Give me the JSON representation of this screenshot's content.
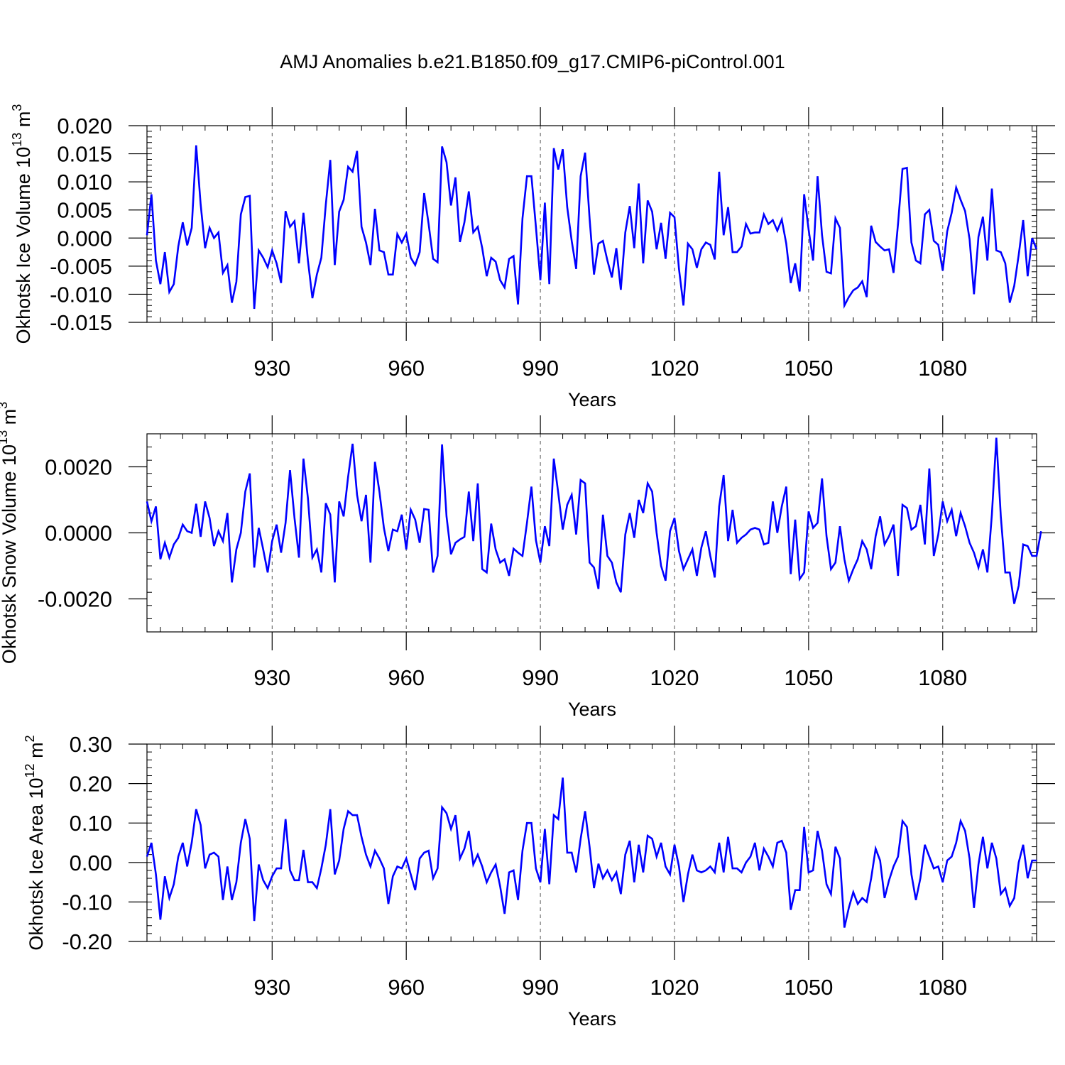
{
  "figure": {
    "title": "AMJ Anomalies b.e21.B1850.f09_g17.CMIP6-piControl.001"
  },
  "colors": {
    "line": "#0000ff",
    "axis": "#000000",
    "grid": "#555555"
  },
  "chart_data": [
    {
      "type": "line",
      "ylabel": "Okhotsk Ice Volume",
      "yunit_base": "10",
      "yunit_exp": "13",
      "yunit_sym": "m",
      "yunit_sym_exp": "3",
      "xlabel": "Years",
      "xlim": [
        902,
        1101
      ],
      "ylim": [
        -0.015,
        0.02
      ],
      "x_ticks": [
        930,
        960,
        990,
        1020,
        1050,
        1080
      ],
      "x_tick_labels": [
        "930",
        "960",
        "990",
        "1020",
        "1050",
        "1080"
      ],
      "y_ticks": [
        -0.015,
        -0.01,
        -0.005,
        0.0,
        0.005,
        0.01,
        0.015,
        0.02
      ],
      "y_tick_labels": [
        "-0.015",
        "-0.010",
        "-0.005",
        "0.000",
        "0.005",
        "0.010",
        "0.015",
        "0.020"
      ],
      "grid": "vertical-dashed",
      "x_start": 902,
      "values": [
        0.0005,
        0.0078,
        -0.004,
        -0.0082,
        -0.0025,
        -0.0096,
        -0.0082,
        -0.0015,
        0.0028,
        -0.0013,
        0.0018,
        0.0165,
        0.006,
        -0.0018,
        0.0018,
        0.0,
        0.001,
        -0.0062,
        -0.0048,
        -0.0115,
        -0.0078,
        0.0042,
        0.0073,
        0.0075,
        -0.0126,
        -0.0022,
        -0.0035,
        -0.0052,
        -0.0022,
        -0.0045,
        -0.008,
        0.0048,
        0.002,
        0.003,
        -0.0045,
        0.0045,
        -0.004,
        -0.0107,
        -0.0065,
        -0.0035,
        0.006,
        0.0139,
        -0.0048,
        0.0047,
        0.0068,
        0.0127,
        0.0118,
        0.0155,
        0.002,
        -0.0008,
        -0.0048,
        0.0052,
        -0.0022,
        -0.0025,
        -0.0065,
        -0.0065,
        0.0007,
        -0.0008,
        0.0008,
        -0.0035,
        -0.0048,
        -0.0025,
        0.008,
        0.0025,
        -0.0037,
        -0.0043,
        0.0163,
        0.0135,
        0.0058,
        0.0108,
        -0.0007,
        0.0028,
        0.0083,
        0.001,
        0.002,
        -0.0018,
        -0.0068,
        -0.0035,
        -0.0042,
        -0.0075,
        -0.0088,
        -0.0037,
        -0.0032,
        -0.0118,
        0.0035,
        0.011,
        0.011,
        0.002,
        -0.0075,
        0.0063,
        -0.0082,
        0.016,
        0.0122,
        0.0158,
        0.0055,
        -0.0005,
        -0.0055,
        0.011,
        0.0152,
        0.0035,
        -0.0065,
        -0.001,
        -0.0005,
        -0.004,
        -0.007,
        -0.0018,
        -0.0092,
        0.001,
        0.0057,
        -0.0018,
        0.0097,
        -0.0045,
        0.0067,
        0.0047,
        -0.002,
        0.0027,
        -0.0037,
        0.0045,
        0.0037,
        -0.0055,
        -0.012,
        -0.001,
        -0.002,
        -0.0053,
        -0.002,
        -0.0008,
        -0.0012,
        -0.0038,
        0.0118,
        0.0005,
        0.0055,
        -0.0025,
        -0.0025,
        -0.0015,
        0.0025,
        0.0008,
        0.001,
        0.001,
        0.0042,
        0.0025,
        0.0032,
        0.0013,
        0.0033,
        -0.001,
        -0.008,
        -0.0045,
        -0.0095,
        0.0078,
        0.0015,
        -0.004,
        0.011,
        0.0005,
        -0.006,
        -0.0063,
        0.0035,
        0.0018,
        -0.012,
        -0.0105,
        -0.0093,
        -0.0088,
        -0.0077,
        -0.0105,
        0.0022,
        -0.0007,
        -0.0015,
        -0.0022,
        -0.002,
        -0.0062,
        0.0025,
        0.0123,
        0.0125,
        -0.0008,
        -0.004,
        -0.0045,
        0.0042,
        0.005,
        -0.0005,
        -0.0012,
        -0.0058,
        0.0012,
        0.0045,
        0.009,
        0.0068,
        0.0048,
        -0.0002,
        -0.01,
        0.0002,
        0.0038,
        -0.004,
        0.0088,
        -0.0022,
        -0.0025,
        -0.0045,
        -0.0115,
        -0.0085,
        -0.003,
        0.0032,
        -0.0068,
        0.0,
        -0.002
      ]
    },
    {
      "type": "line",
      "ylabel": "Okhotsk Snow Volume",
      "yunit_base": "10",
      "yunit_exp": "13",
      "yunit_sym": "m",
      "yunit_sym_exp": "3",
      "xlabel": "Years",
      "xlim": [
        902,
        1101
      ],
      "ylim": [
        -0.003,
        0.003
      ],
      "x_ticks": [
        930,
        960,
        990,
        1020,
        1050,
        1080
      ],
      "x_tick_labels": [
        "930",
        "960",
        "990",
        "1020",
        "1050",
        "1080"
      ],
      "y_ticks": [
        -0.002,
        0.0,
        0.002
      ],
      "y_tick_labels": [
        "-0.0020",
        "0.0000",
        "0.0020"
      ],
      "grid": "vertical-dashed",
      "x_start": 902,
      "values": [
        0.00095,
        0.00035,
        0.0008,
        -0.0008,
        -0.0003,
        -0.00075,
        -0.00035,
        -0.00015,
        0.00025,
        5e-05,
        0.0,
        0.00088,
        -0.00012,
        0.00095,
        0.00045,
        -0.0004,
        5e-05,
        -0.00025,
        0.0006,
        -0.0015,
        -0.0005,
        0.0,
        0.00125,
        0.0018,
        -0.00105,
        0.00015,
        -0.0005,
        -0.0012,
        -0.00025,
        0.00025,
        -0.0006,
        0.0003,
        0.0019,
        0.00045,
        -0.00075,
        0.00225,
        0.00105,
        -0.00075,
        -0.0005,
        -0.0012,
        0.0009,
        0.00055,
        -0.0015,
        0.00095,
        0.0005,
        0.0017,
        0.0027,
        0.00115,
        0.00035,
        0.00115,
        -0.0009,
        0.00215,
        0.00125,
        0.00015,
        -0.00055,
        0.0001,
        5e-05,
        0.00055,
        -0.0005,
        0.0007,
        0.0004,
        -0.0003,
        0.00072,
        0.0007,
        -0.0012,
        -0.0007,
        0.00268,
        0.0005,
        -0.00065,
        -0.0003,
        -0.0002,
        -0.00012,
        0.00125,
        -0.00025,
        0.0015,
        -0.0011,
        -0.0012,
        0.00028,
        -0.0005,
        -0.0009,
        -0.0008,
        -0.0013,
        -0.00048,
        -0.0006,
        -0.0007,
        0.0003,
        0.0014,
        -0.00022,
        -0.0009,
        0.0002,
        -0.0004,
        0.00225,
        0.0012,
        0.0001,
        0.00085,
        0.00115,
        -5e-05,
        0.0016,
        0.0015,
        -0.0009,
        -0.00105,
        -0.0017,
        0.00055,
        -0.0007,
        -0.0009,
        -0.0015,
        -0.0018,
        -5e-05,
        0.0006,
        -0.00015,
        0.001,
        0.0006,
        0.0015,
        0.00125,
        0.0,
        -0.001,
        -0.00145,
        5e-05,
        0.00045,
        -0.00055,
        -0.0011,
        -0.0008,
        -0.0005,
        -0.0013,
        -0.00045,
        5e-05,
        -0.0007,
        -0.00135,
        0.0008,
        0.00175,
        -0.00025,
        0.0007,
        -0.0003,
        -0.00015,
        -5e-05,
        0.0001,
        0.00015,
        0.0001,
        -0.00035,
        -0.0003,
        0.00095,
        0.0,
        0.0008,
        0.0014,
        -0.00125,
        0.0004,
        -0.0014,
        -0.0012,
        0.00065,
        0.00015,
        0.0003,
        0.00165,
        -0.0001,
        -0.0011,
        -0.0009,
        0.0002,
        -0.0008,
        -0.00145,
        -0.0011,
        -0.0008,
        -0.00025,
        -0.0005,
        -0.0011,
        -0.0001,
        0.0005,
        -0.00035,
        -0.0001,
        0.00025,
        -0.0013,
        0.00085,
        0.00075,
        0.0001,
        0.0002,
        0.00085,
        -0.00035,
        0.00195,
        -0.0007,
        -5e-05,
        0.00095,
        0.00035,
        0.0007,
        -0.0001,
        0.0006,
        0.0002,
        -0.0003,
        -0.0006,
        -0.00105,
        -0.0005,
        -0.0012,
        0.00055,
        0.00288,
        0.0005,
        -0.0012,
        -0.0012,
        -0.00215,
        -0.0016,
        -0.00035,
        -0.0004,
        -0.0007,
        -0.0007,
        5e-05
      ]
    },
    {
      "type": "line",
      "ylabel": "Okhotsk Ice Area",
      "yunit_base": "10",
      "yunit_exp": "12",
      "yunit_sym": "m",
      "yunit_sym_exp": "2",
      "xlabel": "Years",
      "xlim": [
        902,
        1101
      ],
      "ylim": [
        -0.2,
        0.3
      ],
      "x_ticks": [
        930,
        960,
        990,
        1020,
        1050,
        1080
      ],
      "x_tick_labels": [
        "930",
        "960",
        "990",
        "1020",
        "1050",
        "1080"
      ],
      "y_ticks": [
        -0.2,
        -0.1,
        0.0,
        0.1,
        0.2,
        0.3
      ],
      "y_tick_labels": [
        "-0.20",
        "-0.10",
        "0.00",
        "0.10",
        "0.20",
        "0.30"
      ],
      "grid": "vertical-dashed",
      "x_start": 902,
      "values": [
        0.015,
        0.05,
        -0.03,
        -0.145,
        -0.035,
        -0.09,
        -0.055,
        0.015,
        0.05,
        -0.01,
        0.05,
        0.135,
        0.095,
        -0.015,
        0.02,
        0.025,
        0.015,
        -0.095,
        -0.01,
        -0.095,
        -0.05,
        0.05,
        0.11,
        0.06,
        -0.148,
        -0.005,
        -0.045,
        -0.065,
        -0.035,
        -0.015,
        -0.015,
        0.11,
        -0.02,
        -0.045,
        -0.045,
        0.032,
        -0.05,
        -0.05,
        -0.065,
        -0.015,
        0.045,
        0.135,
        -0.03,
        0.005,
        0.085,
        0.13,
        0.12,
        0.12,
        0.065,
        0.02,
        -0.01,
        0.03,
        0.01,
        -0.015,
        -0.105,
        -0.035,
        -0.01,
        -0.015,
        0.01,
        -0.03,
        -0.07,
        0.01,
        0.025,
        0.03,
        -0.04,
        -0.015,
        0.14,
        0.125,
        0.085,
        0.12,
        0.01,
        0.035,
        0.08,
        -0.005,
        0.02,
        -0.01,
        -0.05,
        -0.025,
        -0.005,
        -0.06,
        -0.13,
        -0.025,
        -0.02,
        -0.095,
        0.03,
        0.1,
        0.1,
        -0.015,
        -0.05,
        0.085,
        -0.055,
        0.12,
        0.11,
        0.215,
        0.025,
        0.025,
        -0.025,
        0.06,
        0.13,
        0.04,
        -0.065,
        -0.003,
        -0.04,
        -0.02,
        -0.045,
        -0.025,
        -0.08,
        0.02,
        0.055,
        -0.05,
        0.045,
        -0.025,
        0.068,
        0.06,
        0.015,
        0.05,
        -0.01,
        -0.03,
        0.045,
        -0.01,
        -0.1,
        -0.03,
        0.02,
        -0.02,
        -0.025,
        -0.02,
        -0.01,
        -0.025,
        0.05,
        -0.025,
        0.065,
        -0.015,
        -0.015,
        -0.025,
        0.0,
        0.015,
        0.05,
        -0.02,
        0.035,
        0.015,
        -0.01,
        0.05,
        0.055,
        0.025,
        -0.12,
        -0.07,
        -0.07,
        0.09,
        -0.025,
        -0.02,
        0.08,
        0.03,
        -0.055,
        -0.08,
        0.04,
        0.01,
        -0.165,
        -0.115,
        -0.075,
        -0.105,
        -0.09,
        -0.1,
        -0.04,
        0.035,
        0.005,
        -0.09,
        -0.045,
        -0.01,
        0.015,
        0.105,
        0.09,
        -0.03,
        -0.095,
        -0.04,
        0.045,
        0.015,
        -0.015,
        -0.01,
        -0.05,
        0.005,
        0.015,
        0.05,
        0.105,
        0.08,
        0.01,
        -0.115,
        -0.005,
        0.065,
        -0.015,
        0.05,
        0.01,
        -0.08,
        -0.065,
        -0.11,
        -0.09,
        0.0,
        0.045,
        -0.04,
        0.005,
        0.005
      ]
    }
  ]
}
